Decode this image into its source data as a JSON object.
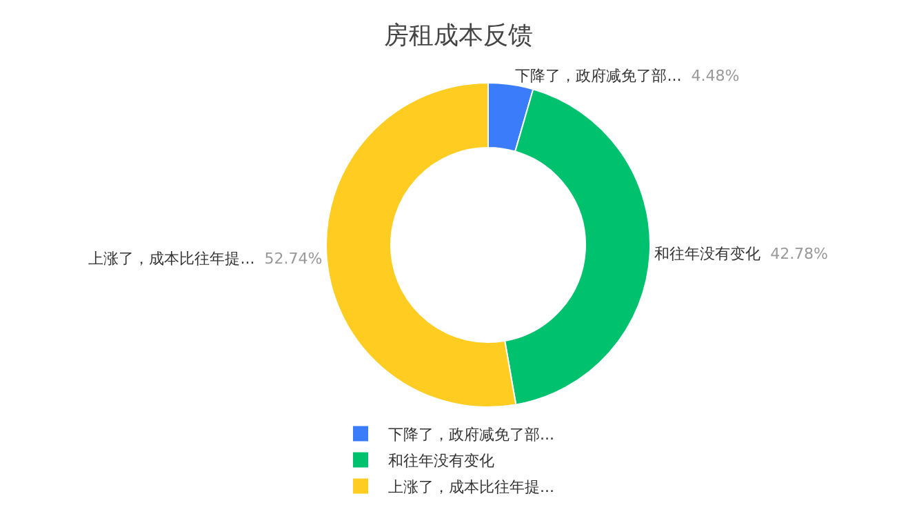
{
  "chart_data": {
    "type": "donut",
    "title": "房租成本反馈",
    "categories": [
      "下降了，政府减免了部...",
      "和往年没有变化",
      "上涨了，成本比往年提..."
    ],
    "values": [
      4.48,
      42.78,
      52.74
    ],
    "colors": [
      "#3a7cfa",
      "#00c16e",
      "#ffcc21"
    ],
    "value_labels": [
      "4.48%",
      "42.78%",
      "52.74%"
    ],
    "legend": "bottom"
  }
}
